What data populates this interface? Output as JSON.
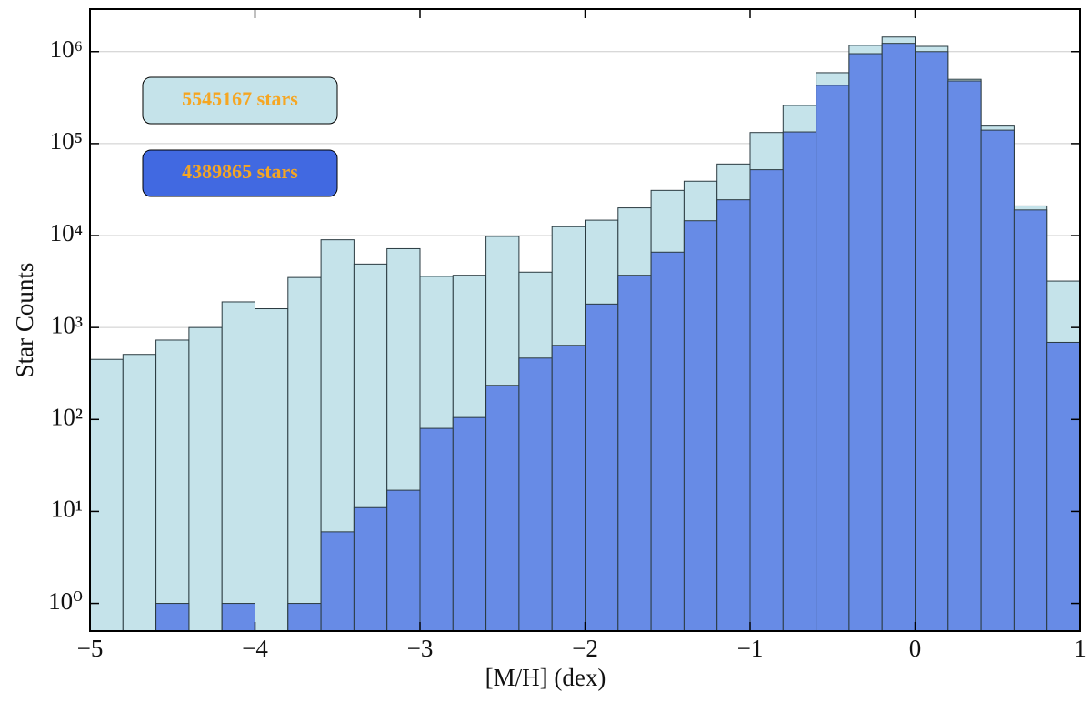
{
  "chart_data": {
    "type": "histogram",
    "x_label": "[M/H] (dex)",
    "y_label": "Star Counts",
    "log_y": true,
    "grid": true,
    "bins": [
      -5,
      -4.8,
      -4.6,
      -4.4,
      -4.2,
      -4,
      -3.8,
      -3.6,
      -3.4,
      -3.2,
      -3,
      -2.8,
      -2.6,
      -2.4,
      -2.2,
      -2,
      -1.8,
      -1.6,
      -1.4,
      -1.2,
      -1,
      -0.8,
      -0.6,
      -0.4,
      -0.2,
      0,
      0.2,
      0.4,
      0.6,
      0.8,
      1
    ],
    "series": [
      {
        "color": "#c5e3ea",
        "values": [
          450,
          510,
          730,
          1000,
          1900,
          1600,
          3500,
          9000,
          4900,
          7200,
          3600,
          3700,
          9800,
          4000,
          12500,
          14700,
          20000,
          31000,
          39000,
          60000,
          132000,
          260000,
          590000,
          1170000,
          1440000,
          1140000,
          500000,
          155000,
          21000,
          3200
        ]
      },
      {
        "color": "#678be6",
        "values": [
          0,
          0,
          1,
          0,
          1,
          0,
          1,
          6,
          11,
          17,
          80,
          105,
          235,
          465,
          640,
          1800,
          3700,
          6600,
          14500,
          24500,
          52000,
          134000,
          430000,
          950000,
          1230000,
          1000000,
          480000,
          140000,
          19000,
          690
        ]
      }
    ],
    "annotations": [
      {
        "text": "5545167 stars",
        "box_color": "#c5e3ea",
        "text_color": "#f5a623"
      },
      {
        "text": "4389865 stars",
        "box_color": "#4169e1",
        "text_color": "#f5a623"
      }
    ],
    "xlim": [
      -5,
      1
    ],
    "xticks": [
      {
        "value": -5,
        "label": "−5"
      },
      {
        "value": -4,
        "label": "−4"
      },
      {
        "value": -3,
        "label": "−3"
      },
      {
        "value": -2,
        "label": "−2"
      },
      {
        "value": -1,
        "label": "−1"
      },
      0,
      1
    ],
    "ylim": [
      0.5,
      2900000
    ],
    "yticks": [
      {
        "value": 1,
        "label": "10⁰"
      },
      {
        "value": 10,
        "label": "10¹"
      },
      {
        "value": 100,
        "label": "10²"
      },
      {
        "value": 1000,
        "label": "10³"
      },
      {
        "value": 10000,
        "label": "10⁴"
      },
      {
        "value": 100000,
        "label": "10⁵"
      },
      {
        "value": 1000000,
        "label": "10⁶"
      }
    ]
  }
}
